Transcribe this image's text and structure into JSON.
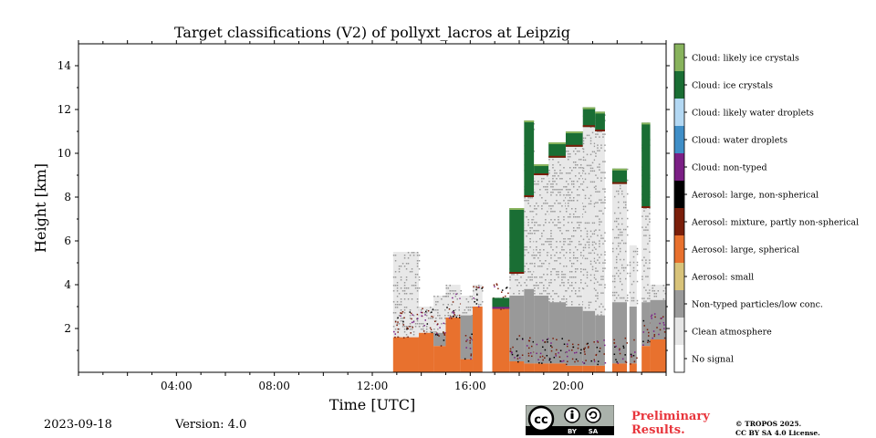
{
  "chart_data": {
    "type": "heatmap",
    "title": "Target classifications (V2) of pollyxt_lacros at Leipzig",
    "xlabel": "Time [UTC]",
    "ylabel": "Height [km]",
    "xlim": [
      0,
      24
    ],
    "ylim": [
      0,
      15
    ],
    "x_tick_values": [
      4,
      8,
      12,
      16,
      20
    ],
    "x_tick_labels": [
      "04:00",
      "08:00",
      "12:00",
      "16:00",
      "20:00"
    ],
    "y_tick_values": [
      2,
      4,
      6,
      8,
      10,
      12,
      14
    ],
    "y_tick_labels": [
      "2",
      "4",
      "6",
      "8",
      "10",
      "12",
      "14"
    ],
    "legend_placement": "right colorbar",
    "classes": [
      {
        "label": "Cloud: likely ice crystals",
        "color": "#88b35d"
      },
      {
        "label": "Cloud: ice crystals",
        "color": "#1a6e34"
      },
      {
        "label": "Cloud: likely water droplets",
        "color": "#b3d8f3"
      },
      {
        "label": "Cloud: water droplets",
        "color": "#3f8ec7"
      },
      {
        "label": "Cloud: non-typed",
        "color": "#7b1f85"
      },
      {
        "label": "Aerosol: large, non-spherical",
        "color": "#000000"
      },
      {
        "label": "Aerosol: mixture, partly non-spherical",
        "color": "#7a1e0a"
      },
      {
        "label": "Aerosol: large, spherical",
        "color": "#e8712e"
      },
      {
        "label": "Aerosol: small",
        "color": "#d8c37a"
      },
      {
        "label": "Non-typed particles/low conc.",
        "color": "#999999"
      },
      {
        "label": "Clean atmosphere",
        "color": "#e6e6e6"
      },
      {
        "label": "No signal",
        "color": "#ffffff"
      }
    ],
    "profiles": [
      {
        "t": [
          12.85,
          13.9
        ],
        "aerosol_top": 1.6,
        "grey_top": 0,
        "cloud_base": 0,
        "cloud_top": 0,
        "cloud": "none",
        "scatter_top": 5.5
      },
      {
        "t": [
          13.9,
          14.5
        ],
        "aerosol_top": 1.8,
        "grey_top": 0,
        "cloud_base": 0,
        "cloud_top": 0,
        "cloud": "none",
        "scatter_top": 3.0
      },
      {
        "t": [
          14.5,
          15.0
        ],
        "aerosol_top": 1.2,
        "grey_top": 1.8,
        "cloud_base": 0,
        "cloud_top": 0,
        "cloud": "none",
        "scatter_top": 3.5
      },
      {
        "t": [
          15.0,
          15.6
        ],
        "aerosol_top": 2.5,
        "grey_top": 0,
        "cloud_base": 0,
        "cloud_top": 0,
        "cloud": "none",
        "scatter_top": 4.0
      },
      {
        "t": [
          15.6,
          16.1
        ],
        "aerosol_top": 0.6,
        "grey_top": 2.6,
        "cloud_base": 0,
        "cloud_top": 0,
        "cloud": "none",
        "scatter_top": 3.5
      },
      {
        "t": [
          16.1,
          16.5
        ],
        "aerosol_top": 3.0,
        "grey_top": 0,
        "cloud_base": 0,
        "cloud_top": 0,
        "cloud": "none",
        "scatter_top": 4.0
      },
      {
        "t": [
          16.9,
          17.6
        ],
        "aerosol_top": 2.9,
        "grey_top": 0,
        "cloud_base": 2.9,
        "cloud_top": 3.4,
        "cloud": "water",
        "scatter_top": 3.4
      },
      {
        "t": [
          17.6,
          18.2
        ],
        "aerosol_top": 0.5,
        "grey_top": 3.5,
        "cloud_base": 4.5,
        "cloud_top": 7.5,
        "cloud": "ice",
        "scatter_top": 7.5
      },
      {
        "t": [
          18.2,
          18.6
        ],
        "aerosol_top": 0.4,
        "grey_top": 3.8,
        "cloud_base": 8.0,
        "cloud_top": 11.5,
        "cloud": "ice",
        "scatter_top": 11.5
      },
      {
        "t": [
          18.6,
          19.2
        ],
        "aerosol_top": 0.4,
        "grey_top": 3.5,
        "cloud_base": 9.0,
        "cloud_top": 9.5,
        "cloud": "ice",
        "scatter_top": 9.5
      },
      {
        "t": [
          19.2,
          19.9
        ],
        "aerosol_top": 0.4,
        "grey_top": 3.2,
        "cloud_base": 9.8,
        "cloud_top": 10.5,
        "cloud": "ice",
        "scatter_top": 10.5
      },
      {
        "t": [
          19.9,
          20.6
        ],
        "aerosol_top": 0.3,
        "grey_top": 3.0,
        "cloud_base": 10.3,
        "cloud_top": 11.0,
        "cloud": "ice",
        "scatter_top": 11.0
      },
      {
        "t": [
          20.6,
          21.1
        ],
        "aerosol_top": 0.3,
        "grey_top": 2.8,
        "cloud_base": 11.2,
        "cloud_top": 12.1,
        "cloud": "ice",
        "scatter_top": 12.1
      },
      {
        "t": [
          21.1,
          21.5
        ],
        "aerosol_top": 0.3,
        "grey_top": 2.6,
        "cloud_base": 11.0,
        "cloud_top": 11.9,
        "cloud": "ice",
        "scatter_top": 11.9
      },
      {
        "t": [
          21.8,
          22.4
        ],
        "aerosol_top": 0.4,
        "grey_top": 3.2,
        "cloud_base": 8.6,
        "cloud_top": 9.3,
        "cloud": "ice",
        "scatter_top": 9.3
      },
      {
        "t": [
          22.5,
          22.8
        ],
        "aerosol_top": 0.4,
        "grey_top": 3.0,
        "cloud_base": 0,
        "cloud_top": 0,
        "cloud": "none",
        "scatter_top": 5.8
      },
      {
        "t": [
          23.0,
          23.35
        ],
        "aerosol_top": 1.2,
        "grey_top": 3.2,
        "cloud_base": 7.5,
        "cloud_top": 11.4,
        "cloud": "ice",
        "scatter_top": 11.4
      },
      {
        "t": [
          23.35,
          24.0
        ],
        "aerosol_top": 1.5,
        "grey_top": 3.3,
        "cloud_base": 0,
        "cloud_top": 0,
        "cloud": "none",
        "scatter_top": 4.0
      }
    ]
  },
  "footer": {
    "date": "2023-09-18",
    "version": "Version: 4.0",
    "preliminary": "Preliminary Results.",
    "copyright_line1": "© TROPOS 2025.",
    "copyright_line2": "CC BY SA 4.0 License.",
    "cc_text": "cc",
    "by_text": "BY",
    "sa_text": "SA"
  }
}
